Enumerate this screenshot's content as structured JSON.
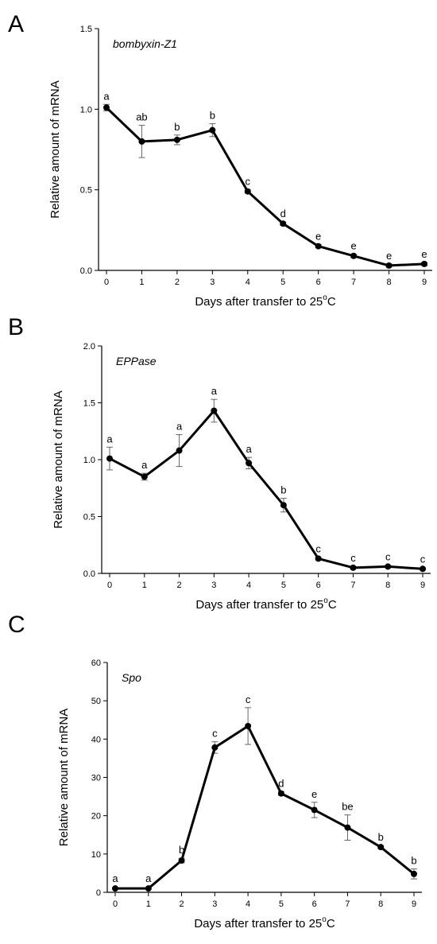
{
  "chart_data": [
    {
      "type": "line",
      "panel_label": "A",
      "title": "bombyxin-Z1",
      "xlabel": "Days after transfer to 25",
      "xlabel_sup": "o",
      "xlabel_tail": "C",
      "ylabel": "Relative amount of mRNA",
      "x": [
        0,
        1,
        2,
        3,
        4,
        5,
        6,
        7,
        8,
        9
      ],
      "values": [
        1.01,
        0.8,
        0.81,
        0.87,
        0.49,
        0.29,
        0.15,
        0.09,
        0.03,
        0.04
      ],
      "errors": [
        0.02,
        0.1,
        0.03,
        0.04,
        0.01,
        0.01,
        0.01,
        0.01,
        0.01,
        0.01
      ],
      "letters": [
        "a",
        "ab",
        "b",
        "b",
        "c",
        "d",
        "e",
        "e",
        "e",
        "e"
      ],
      "ylim": [
        0,
        1.5
      ],
      "yticks": [
        "0.0",
        "0.5",
        "1.0",
        "1.5"
      ],
      "ytick_values": [
        0,
        0.5,
        1.0,
        1.5
      ],
      "xticks": [
        "0",
        "1",
        "2",
        "3",
        "4",
        "5",
        "6",
        "7",
        "8",
        "9"
      ],
      "grid": false
    },
    {
      "type": "line",
      "panel_label": "B",
      "title": "EPPase",
      "xlabel": "Days after transfer to 25",
      "xlabel_sup": "o",
      "xlabel_tail": "C",
      "ylabel": "Relative amount of mRNA",
      "x": [
        0,
        1,
        2,
        3,
        4,
        5,
        6,
        7,
        8,
        9
      ],
      "values": [
        1.01,
        0.85,
        1.08,
        1.43,
        0.97,
        0.6,
        0.13,
        0.05,
        0.06,
        0.04
      ],
      "errors": [
        0.1,
        0.03,
        0.14,
        0.1,
        0.05,
        0.06,
        0.01,
        0.01,
        0.01,
        0.01
      ],
      "letters": [
        "a",
        "a",
        "a",
        "a",
        "a",
        "b",
        "c",
        "c",
        "c",
        "c"
      ],
      "ylim": [
        0,
        2.0
      ],
      "yticks": [
        "0.0",
        "0.5",
        "1.0",
        "1.5",
        "2.0"
      ],
      "ytick_values": [
        0,
        0.5,
        1.0,
        1.5,
        2.0
      ],
      "xticks": [
        "0",
        "1",
        "2",
        "3",
        "4",
        "5",
        "6",
        "7",
        "8",
        "9"
      ],
      "grid": false
    },
    {
      "type": "line",
      "panel_label": "C",
      "title": "Spo",
      "xlabel": "Days after transfer to 25",
      "xlabel_sup": "o",
      "xlabel_tail": "C",
      "ylabel": "Relative amount of mRNA",
      "x": [
        0,
        1,
        2,
        3,
        4,
        5,
        6,
        7,
        8,
        9
      ],
      "values": [
        1.0,
        1.0,
        8.3,
        37.8,
        43.4,
        25.8,
        21.5,
        16.9,
        11.8,
        4.8
      ],
      "errors": [
        0.2,
        0.2,
        0.6,
        1.5,
        4.8,
        0.5,
        2.0,
        3.3,
        0.4,
        1.3
      ],
      "letters": [
        "a",
        "a",
        "b",
        "c",
        "c",
        "d",
        "e",
        "be",
        "b",
        "b"
      ],
      "ylim": [
        0,
        60
      ],
      "yticks": [
        "0",
        "10",
        "20",
        "30",
        "40",
        "50",
        "60"
      ],
      "ytick_values": [
        0,
        10,
        20,
        30,
        40,
        50,
        60
      ],
      "xticks": [
        "0",
        "1",
        "2",
        "3",
        "4",
        "5",
        "6",
        "7",
        "8",
        "9"
      ],
      "grid": false
    }
  ]
}
